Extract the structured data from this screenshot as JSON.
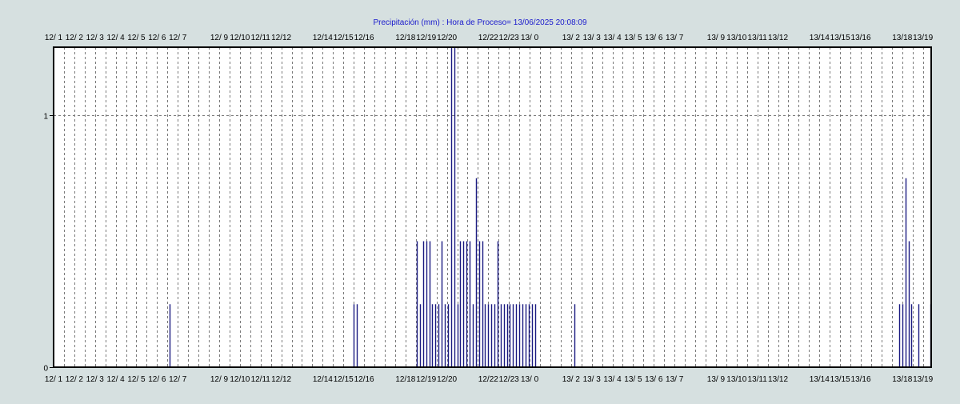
{
  "chart_data": {
    "type": "bar",
    "title": "Precipitación  (mm) : Hora de Proceso= 13/06/2025 20:08:09",
    "xlabel": "",
    "ylabel": "",
    "ylim": [
      0,
      1.27
    ],
    "yticks": [
      0,
      1
    ],
    "grid": true,
    "colors": {
      "title": "#1a1acc",
      "bars": "#1a1a80",
      "frame": "#000000",
      "grid": "#7a7a7a",
      "background": "#ffffff",
      "page": "#d6e0e0"
    },
    "tick_labels": [
      "12/ 1",
      "12/ 2",
      "12/ 3",
      "12/ 4",
      "12/ 5",
      "12/ 6",
      "12/ 7",
      "12/ 9",
      "12/10",
      "12/11",
      "12/12",
      "12/14",
      "12/15",
      "12/16",
      "12/18",
      "12/19",
      "12/20",
      "12/22",
      "12/23",
      "13/ 0",
      "13/ 2",
      "13/ 3",
      "13/ 4",
      "13/ 5",
      "13/ 6",
      "13/ 7",
      "13/ 9",
      "13/10",
      "13/11",
      "13/12",
      "13/14",
      "13/15",
      "13/16",
      "13/18",
      "13/19"
    ],
    "tick_hours": [
      1,
      2,
      3,
      4,
      5,
      6,
      7,
      9,
      10,
      11,
      12,
      14,
      15,
      16,
      18,
      19,
      20,
      22,
      23,
      24,
      26,
      27,
      28,
      29,
      30,
      31,
      33,
      34,
      35,
      36,
      38,
      39,
      40,
      42,
      43
    ],
    "x_start": "12/ 1",
    "x_end": "13/19",
    "x_hour_range": [
      1,
      43.4
    ],
    "series": [
      {
        "hours": [
          6.6,
          15.5,
          15.65,
          18.55,
          18.7,
          18.85,
          19.0,
          19.15,
          19.3,
          19.45,
          19.6,
          19.75,
          19.9,
          20.05,
          20.2,
          20.35,
          20.5,
          20.65,
          20.8,
          20.95,
          21.1,
          21.25,
          21.4,
          21.55,
          21.7,
          21.85,
          22.0,
          22.15,
          22.3,
          22.45,
          22.6,
          22.75,
          22.9,
          23.05,
          23.2,
          23.35,
          23.5,
          23.65,
          23.8,
          23.95,
          24.1,
          24.25,
          26.15,
          41.85,
          42.0,
          42.15,
          42.3,
          42.45,
          42.8,
          43.35
        ],
        "values": [
          0.25,
          0.25,
          0.25,
          0.5,
          0.25,
          0.5,
          0.5,
          0.5,
          0.25,
          0.25,
          0.25,
          0.5,
          0.25,
          0.25,
          1.27,
          1.27,
          0.25,
          0.5,
          0.5,
          0.5,
          0.5,
          0.25,
          0.75,
          0.5,
          0.5,
          0.25,
          0.25,
          0.25,
          0.25,
          0.5,
          0.25,
          0.25,
          0.25,
          0.25,
          0.25,
          0.25,
          0.25,
          0.25,
          0.25,
          0.25,
          0.25,
          0.25,
          0.25,
          0.25,
          0.25,
          0.75,
          0.5,
          0.25,
          0.25,
          0.25
        ]
      }
    ]
  }
}
